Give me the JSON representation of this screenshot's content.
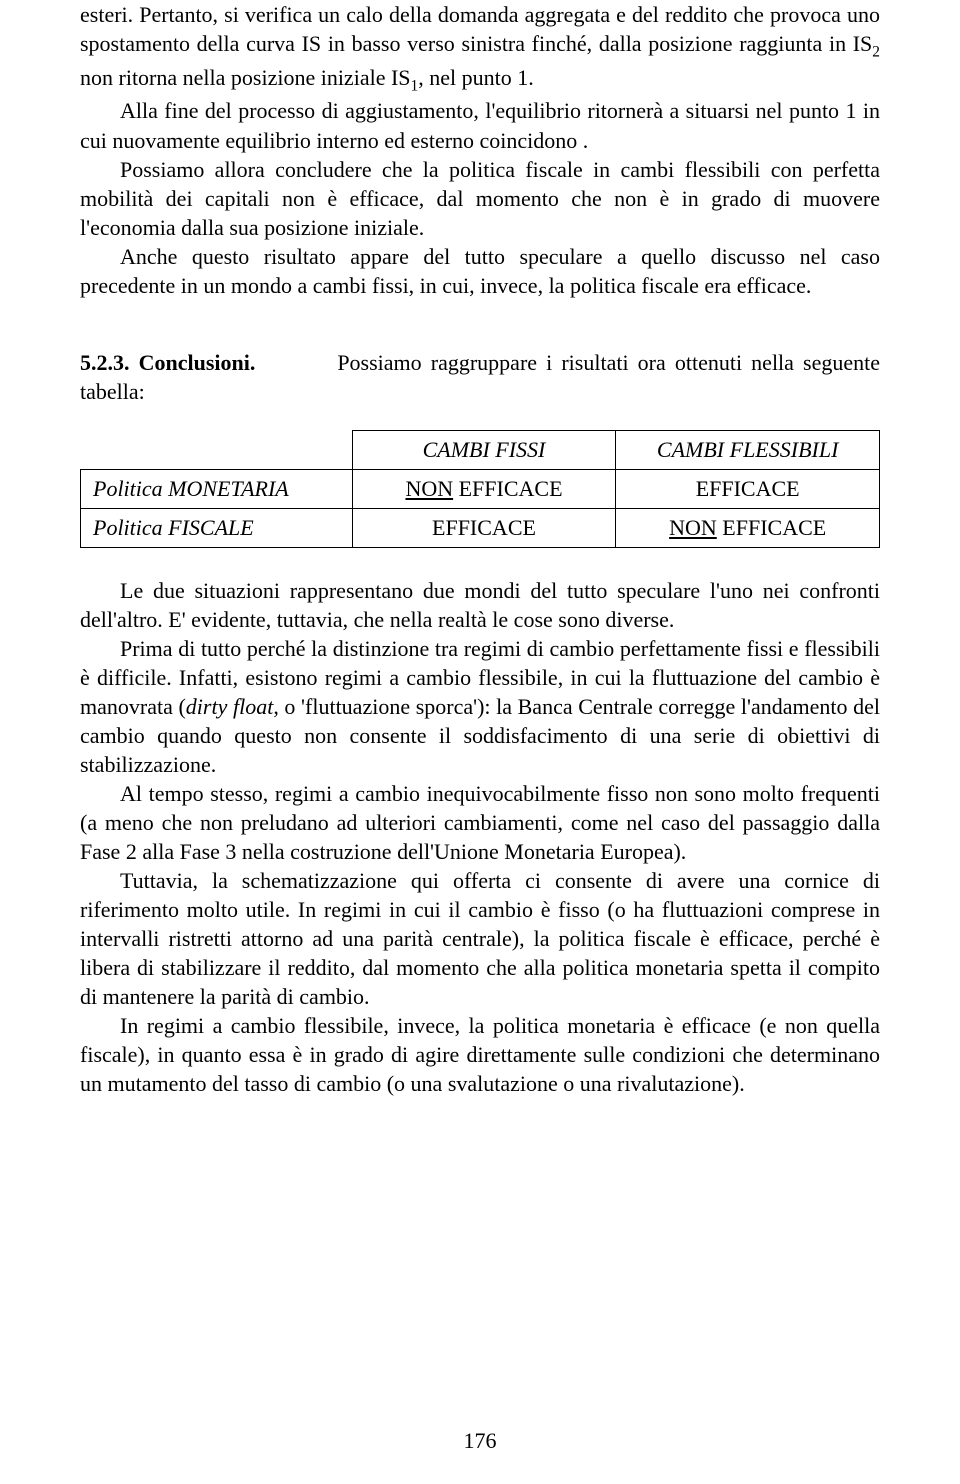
{
  "paragraphs": {
    "p1": "esteri.  Pertanto, si verifica un calo della domanda aggregata e del reddito che provoca uno spostamento della curva IS in basso verso sinistra finché, dalla posizione raggiunta in IS",
    "p1_sub": "2",
    "p1_cont": " non ritorna nella posizione iniziale IS",
    "p1_sub2": "1",
    "p1_end": ", nel punto 1.",
    "p2": "Alla fine del processo di aggiustamento, l'equilibrio ritornerà a situarsi nel punto 1 in cui nuovamente equilibrio interno ed esterno coincidono .",
    "p3": "Possiamo allora concludere che la politica fiscale in cambi flessibili con perfetta mobilità dei capitali non è efficace, dal momento che non è in grado di muovere l'economia dalla sua posizione iniziale.",
    "p4": "Anche questo risultato appare del tutto speculare a quello discusso nel caso precedente in un mondo a cambi fissi, in cui, invece, la politica fiscale era efficace.",
    "sec_num": "5.2.3. Conclusioni.",
    "sec_text": "Possiamo raggruppare i risultati ora ottenuti nella seguente tabella:",
    "p5": "Le due situazioni rappresentano due mondi del tutto speculare l'uno nei confronti dell'altro.  E' evidente, tuttavia, che nella realtà le cose sono diverse.",
    "p6a": "Prima di tutto perché la distinzione tra regimi di cambio perfettamente fissi e flessibili è difficile.  Infatti, esistono regimi a cambio flessibile, in cui la fluttuazione del cambio è manovrata (",
    "p6_it": "dirty float",
    "p6b": ", o 'fluttuazione sporca'):  la Banca Centrale corregge l'andamento del cambio quando questo non consente il soddisfacimento di una serie di obiettivi di stabilizzazione.",
    "p7": "Al tempo stesso, regimi a cambio inequivocabilmente fisso non sono molto frequenti (a meno che non preludano ad ulteriori cambiamenti, come nel caso del passaggio dalla Fase 2  alla Fase 3 nella costruzione dell'Unione Monetaria Europea).",
    "p8": "Tuttavia, la schematizzazione qui offerta ci consente di avere una cornice di riferimento molto utile.  In regimi in cui il cambio è fisso (o ha fluttuazioni comprese in intervalli ristretti attorno ad una parità centrale), la politica fiscale è efficace, perché è libera di stabilizzare il reddito, dal momento che alla politica monetaria spetta il compito di mantenere la parità di cambio.",
    "p9": "In regimi a cambio flessibile, invece, la politica monetaria è efficace (e non quella fiscale), in quanto essa è in grado di agire direttamente sulle condizioni che determinano un mutamento del tasso di cambio (o una svalutazione o una rivalutazione)."
  },
  "table": {
    "col1": "CAMBI FISSI",
    "col2": "CAMBI FLESSIBILI",
    "row1_label": "Politica MONETARIA",
    "row1_c1_u": "NON",
    "row1_c1_rest": " EFFICACE",
    "row1_c2": "EFFICACE",
    "row2_label": "Politica FISCALE",
    "row2_c1": "EFFICACE",
    "row2_c2_u": "NON",
    "row2_c2_rest": " EFFICACE"
  },
  "page_number": "176"
}
